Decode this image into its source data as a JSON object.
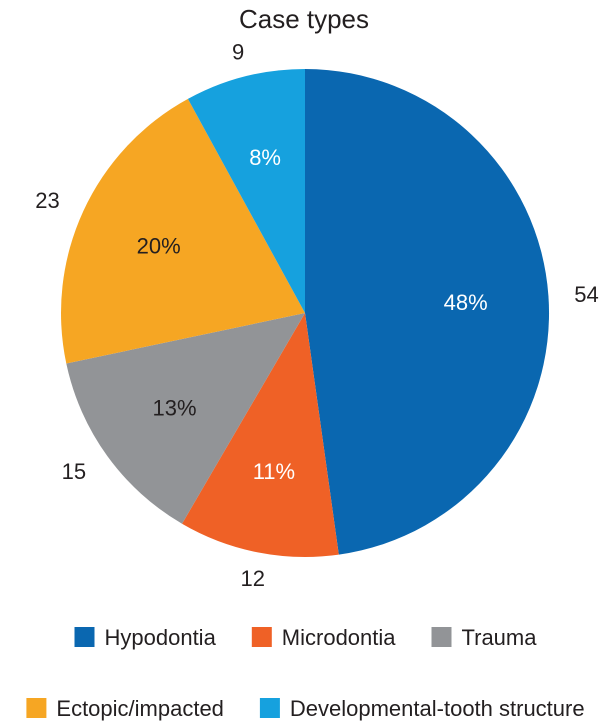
{
  "chart_data": {
    "type": "pie",
    "title": "Case types",
    "slices": [
      {
        "label": "Hypodontia",
        "value": 54,
        "percent_label": "48%",
        "color": "#0a67b0"
      },
      {
        "label": "Microdontia",
        "value": 12,
        "percent_label": "11%",
        "color": "#ef6126"
      },
      {
        "label": "Trauma",
        "value": 15,
        "percent_label": "13%",
        "color": "#929497"
      },
      {
        "label": "Ectopic/impacted",
        "value": 23,
        "percent_label": "20%",
        "color": "#f6a623"
      },
      {
        "label": "Developmental-tooth structure",
        "value": 9,
        "percent_label": "8%",
        "color": "#16a1de"
      }
    ],
    "legend_placement": "bottom",
    "label_colors": {
      "on_dark": "#ffffff",
      "on_light": "#231f20"
    }
  }
}
